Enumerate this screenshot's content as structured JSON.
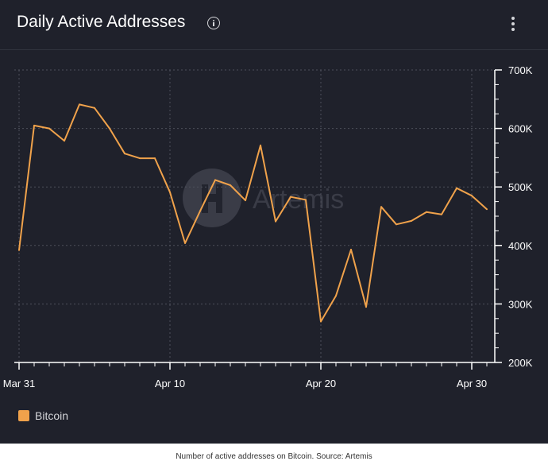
{
  "header": {
    "title": "Daily Active Addresses"
  },
  "watermark": "Artemis",
  "chart_data": {
    "type": "line",
    "xlabel": "",
    "ylabel": "",
    "x_ticks": [
      "Mar 31",
      "Apr 10",
      "Apr 20",
      "Apr 30"
    ],
    "y_ticks": [
      "700K",
      "600K",
      "500K",
      "400K",
      "300K",
      "200K"
    ],
    "ylim": [
      200000,
      700000
    ],
    "grid": true,
    "legend_position": "bottom-left",
    "series": [
      {
        "name": "Bitcoin",
        "color": "#f0a24b",
        "x": [
          "Mar 31",
          "Apr 1",
          "Apr 2",
          "Apr 3",
          "Apr 4",
          "Apr 5",
          "Apr 6",
          "Apr 7",
          "Apr 8",
          "Apr 9",
          "Apr 10",
          "Apr 11",
          "Apr 12",
          "Apr 13",
          "Apr 14",
          "Apr 15",
          "Apr 16",
          "Apr 17",
          "Apr 18",
          "Apr 19",
          "Apr 20",
          "Apr 21",
          "Apr 22",
          "Apr 23",
          "Apr 24",
          "Apr 25",
          "Apr 26",
          "Apr 27",
          "Apr 28",
          "Apr 29",
          "Apr 30",
          "May 1"
        ],
        "values": [
          392000,
          605000,
          600000,
          579000,
          641000,
          635000,
          600000,
          557000,
          549000,
          549000,
          491000,
          404000,
          459000,
          512000,
          503000,
          477000,
          571000,
          441000,
          483000,
          478000,
          270000,
          314000,
          393000,
          295000,
          466000,
          436000,
          442000,
          457000,
          453000,
          498000,
          485000,
          462000
        ]
      }
    ]
  },
  "legend": {
    "label": "Bitcoin"
  },
  "caption": "Number of active addresses on Bitcoin. Source: Artemis"
}
